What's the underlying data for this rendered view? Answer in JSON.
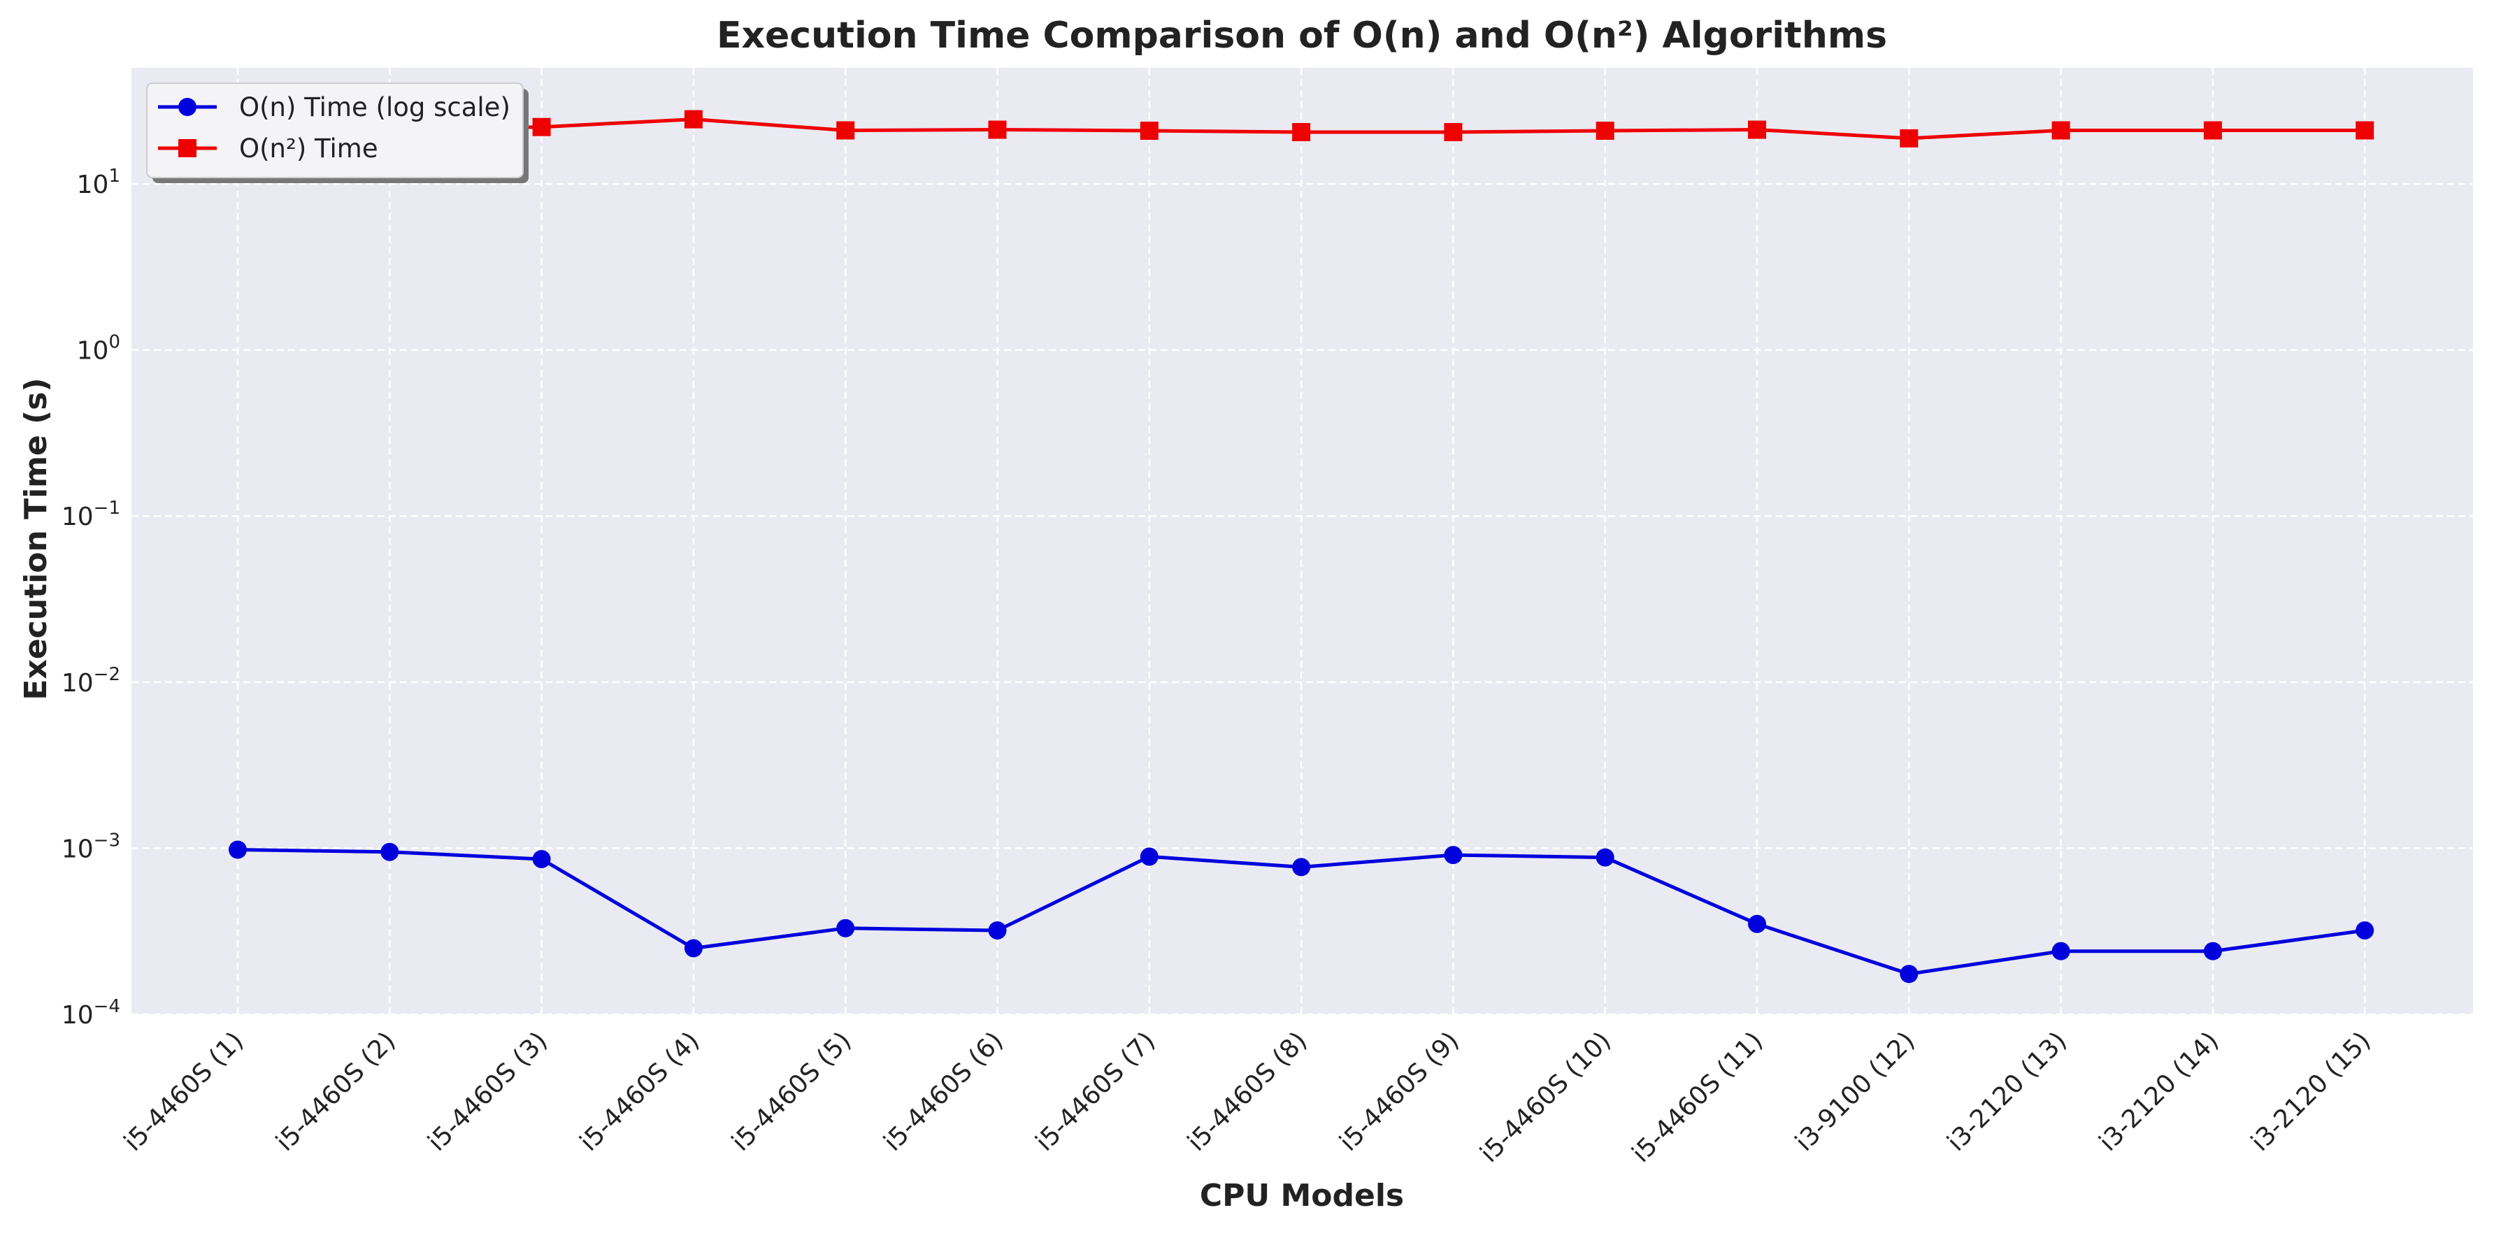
{
  "chart_data": {
    "type": "line",
    "title": "Execution Time Comparison of O(n) and O(n²) Algorithms",
    "xlabel": "CPU Models",
    "ylabel": "Execution Time (s)",
    "yscale": "log",
    "ylim": [
      0.0001,
      50
    ],
    "grid": true,
    "legend_position": "top-left",
    "categories": [
      "i5-4460S (1)",
      "i5-4460S (2)",
      "i5-4460S (3)",
      "i5-4460S (4)",
      "i5-4460S (5)",
      "i5-4460S (6)",
      "i5-4460S (7)",
      "i5-4460S (8)",
      "i5-4460S (9)",
      "i5-4460S (10)",
      "i5-4460S (11)",
      "i3-9100 (12)",
      "i3-2120 (13)",
      "i3-2120 (14)",
      "i3-2120 (15)"
    ],
    "y_ticks": [
      {
        "value": 0.0001,
        "base": "10",
        "exp": "−4"
      },
      {
        "value": 0.001,
        "base": "10",
        "exp": "−3"
      },
      {
        "value": 0.01,
        "base": "10",
        "exp": "−2"
      },
      {
        "value": 0.1,
        "base": "10",
        "exp": "−1"
      },
      {
        "value": 1,
        "base": "10",
        "exp": "0"
      },
      {
        "value": 10,
        "base": "10",
        "exp": "1"
      }
    ],
    "series": [
      {
        "name": "O(n) Time (log scale)",
        "color": "#0000dd",
        "marker": "circle",
        "values": [
          0.00098,
          0.00095,
          0.00086,
          0.00025,
          0.00033,
          0.00032,
          0.00089,
          0.00077,
          0.00091,
          0.00088,
          0.00035,
          0.000175,
          0.00024,
          0.00024,
          0.00032
        ]
      },
      {
        "name": "O(n²) Time",
        "color": "#ee0000",
        "marker": "square",
        "values": [
          21.5,
          21.5,
          22.0,
          24.5,
          21.0,
          21.2,
          20.9,
          20.5,
          20.5,
          20.9,
          21.2,
          18.8,
          21.0,
          21.0,
          21.0
        ]
      }
    ]
  }
}
